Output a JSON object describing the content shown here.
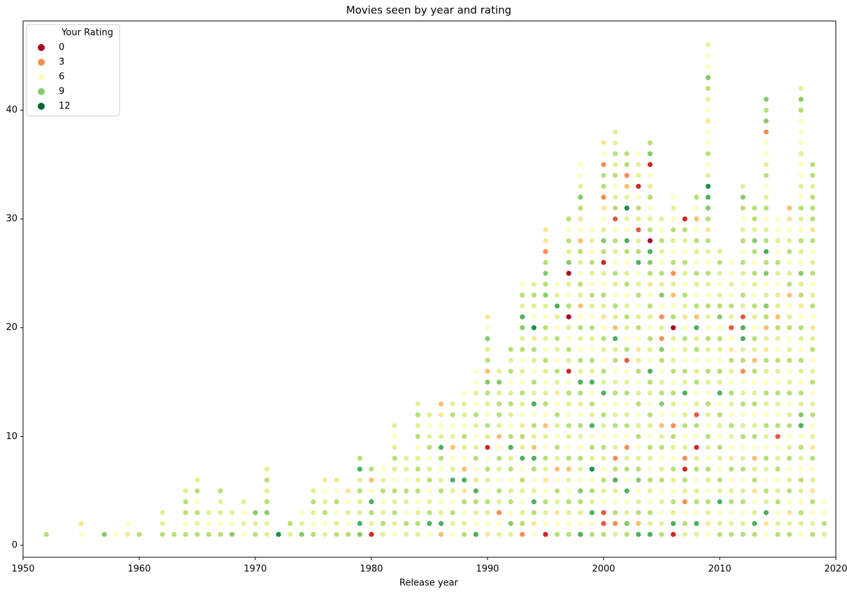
{
  "chart_data": {
    "type": "strip",
    "title": "Movies seen by year and rating",
    "xlabel": "Release year",
    "xlim": [
      1950,
      2020
    ],
    "xticks": [
      1950,
      1960,
      1970,
      1980,
      1990,
      2000,
      2010,
      2020
    ],
    "ylim": [
      -1.1,
      48.2
    ],
    "yticks": [
      0,
      10,
      20,
      30,
      40
    ],
    "grid": false,
    "clim": [
      0,
      12
    ],
    "colormap": [
      "#a50026",
      "#d73027",
      "#f46d43",
      "#fdae61",
      "#fee08b",
      "#ffffbf",
      "#d9ef8b",
      "#a6d96a",
      "#66bd63",
      "#1a9850",
      "#006837"
    ],
    "legend": {
      "title": "Your Rating",
      "values": [
        0,
        3,
        6,
        9,
        12
      ],
      "position": "upper left"
    },
    "x": [
      1952,
      1955,
      1957,
      1958,
      1959,
      1960,
      1962,
      1963,
      1964,
      1965,
      1966,
      1967,
      1968,
      1969,
      1970,
      1971,
      1972,
      1973,
      1974,
      1975,
      1976,
      1977,
      1978,
      1979,
      1980,
      1981,
      1982,
      1983,
      1984,
      1985,
      1986,
      1987,
      1988,
      1989,
      1990,
      1991,
      1992,
      1993,
      1994,
      1995,
      1996,
      1997,
      1998,
      1999,
      2000,
      2001,
      2002,
      2003,
      2004,
      2005,
      2006,
      2007,
      2008,
      2009,
      2010,
      2011,
      2012,
      2013,
      2014,
      2015,
      2016,
      2017,
      2018,
      2019
    ],
    "ratings": [
      [
        8
      ],
      [
        6,
        5
      ],
      [
        9
      ],
      [
        6
      ],
      [
        5,
        6
      ],
      [
        8
      ],
      [
        8,
        7,
        7
      ],
      [
        8
      ],
      [
        8,
        6,
        8,
        8,
        7
      ],
      [
        8,
        7,
        8,
        6,
        8,
        7
      ],
      [
        8,
        6,
        7
      ],
      [
        8,
        6,
        7,
        7,
        8
      ],
      [
        9,
        6,
        7
      ],
      [
        6,
        7,
        6,
        7
      ],
      [
        8,
        7,
        9
      ],
      [
        7,
        7,
        9,
        8,
        7,
        8,
        7
      ],
      [
        11
      ],
      [
        7,
        8
      ],
      [
        9,
        7,
        6
      ],
      [
        8,
        6,
        7,
        8,
        7
      ],
      [
        7,
        6,
        8,
        7,
        6,
        5
      ],
      [
        8,
        7,
        6,
        8,
        6,
        7
      ],
      [
        8,
        6,
        7,
        6,
        5
      ],
      [
        9,
        10,
        7,
        7,
        8,
        7,
        10,
        8
      ],
      [
        1,
        7,
        8,
        10,
        6,
        4,
        8
      ],
      [
        7,
        8,
        7,
        6,
        8,
        7,
        6
      ],
      [
        6,
        7,
        8,
        7,
        8,
        6,
        7,
        8,
        7,
        6,
        7
      ],
      [
        7,
        8,
        6,
        7,
        8,
        6,
        7,
        7
      ],
      [
        7,
        8,
        7,
        6,
        8,
        7,
        8,
        7,
        6,
        8,
        7,
        8,
        7
      ],
      [
        6,
        10,
        8,
        7,
        6,
        8,
        7,
        6,
        8,
        7,
        6,
        7
      ],
      [
        4,
        10,
        7,
        6,
        8,
        7,
        6,
        8,
        10,
        7,
        6,
        5,
        4
      ],
      [
        6,
        7,
        8,
        6,
        7,
        10,
        7,
        6,
        4,
        7,
        6,
        8,
        7
      ],
      [
        8,
        7,
        6,
        8,
        5,
        10,
        4,
        6,
        7,
        8,
        6,
        7,
        7,
        6
      ],
      [
        10,
        6,
        7,
        8,
        10,
        7,
        6,
        8,
        7,
        6,
        7,
        8,
        6,
        7,
        6,
        6
      ],
      [
        5,
        6,
        7,
        8,
        6,
        7,
        8,
        6,
        1,
        7,
        8,
        6,
        7,
        8,
        9,
        4,
        8,
        7,
        9,
        6,
        5
      ],
      [
        7,
        6,
        3,
        7,
        8,
        6,
        7,
        8,
        6,
        4,
        7,
        8,
        8,
        7,
        9,
        7
      ],
      [
        7,
        9,
        6,
        8,
        7,
        6,
        8,
        7,
        10,
        8,
        6,
        7,
        8,
        7,
        6,
        8,
        7,
        8
      ],
      [
        3,
        8,
        7,
        6,
        7,
        8,
        6,
        10,
        7,
        8,
        5,
        6,
        7,
        8,
        6,
        7,
        6,
        8,
        7,
        9,
        10,
        7,
        8,
        6
      ],
      [
        6,
        5,
        8,
        10,
        7,
        6,
        8,
        10,
        4,
        7,
        8,
        6,
        10,
        7,
        8,
        6,
        7,
        8,
        5,
        11,
        6,
        7,
        8,
        7
      ],
      [
        1,
        6,
        7,
        8,
        6,
        5,
        7,
        8,
        6,
        7,
        4,
        6,
        8,
        7,
        6,
        7,
        8,
        6,
        7,
        8,
        6,
        7,
        9,
        8,
        9,
        8,
        3,
        5,
        5
      ],
      [
        8,
        6,
        5,
        7,
        8,
        6,
        4,
        7,
        8,
        6,
        7,
        8,
        6,
        5,
        7,
        8,
        6,
        7,
        8,
        6,
        7,
        10,
        7,
        6
      ],
      [
        8,
        6,
        7,
        8,
        6,
        7,
        4,
        8,
        6,
        7,
        8,
        6,
        7,
        8,
        6,
        1,
        7,
        8,
        6,
        7,
        0,
        8,
        6,
        7,
        0,
        9,
        7,
        8,
        6,
        8
      ],
      [
        10,
        6,
        7,
        8,
        9,
        6,
        7,
        8,
        6,
        7,
        8,
        6,
        7,
        8,
        10,
        7,
        8,
        6,
        7,
        8,
        6,
        4,
        7,
        8,
        6,
        7,
        8,
        4,
        6,
        5,
        8,
        9,
        7,
        6,
        6
      ],
      [
        8,
        6,
        10,
        7,
        8,
        6,
        11,
        7,
        8,
        6,
        10,
        7,
        8,
        6,
        10,
        7,
        8,
        6,
        7,
        8,
        6,
        7,
        8,
        6,
        7,
        8,
        6,
        7,
        6
      ],
      [
        8,
        2,
        2,
        6,
        7,
        8,
        6,
        7,
        8,
        6,
        7,
        8,
        6,
        10,
        7,
        8,
        6,
        7,
        8,
        6,
        5,
        7,
        8,
        6,
        7,
        1,
        8,
        9,
        7,
        6,
        5,
        3,
        8,
        8,
        3,
        6,
        5
      ],
      [
        7,
        3,
        8,
        6,
        7,
        10,
        8,
        3,
        7,
        6,
        8,
        7,
        6,
        8,
        7,
        6,
        8,
        7,
        10,
        4,
        7,
        8,
        6,
        7,
        8,
        6,
        7,
        8,
        6,
        2,
        8,
        7,
        6,
        8,
        7,
        8,
        7,
        7
      ],
      [
        8,
        9,
        7,
        6,
        10,
        6,
        8,
        7,
        3,
        6,
        8,
        7,
        6,
        8,
        7,
        6,
        2,
        8,
        6,
        7,
        8,
        7,
        6,
        8,
        7,
        6,
        8,
        10,
        6,
        7,
        11,
        7,
        4,
        3,
        8,
        8
      ],
      [
        10,
        4,
        8,
        7,
        6,
        9,
        8,
        7,
        6,
        8,
        7,
        6,
        8,
        7,
        6,
        8,
        7,
        5,
        6,
        8,
        7,
        6,
        8,
        7,
        6,
        10,
        8,
        7,
        2,
        7,
        8,
        6,
        1,
        7,
        7,
        6
      ],
      [
        10,
        7,
        8,
        6,
        7,
        8,
        6,
        7,
        8,
        6,
        7,
        8,
        6,
        7,
        8,
        10,
        6,
        7,
        8,
        6,
        7,
        8,
        6,
        5,
        8,
        9,
        10,
        0,
        8,
        7,
        6,
        8,
        7,
        6,
        1,
        9,
        8
      ],
      [
        8,
        7,
        6,
        7,
        6,
        8,
        7,
        6,
        8,
        7,
        4,
        6,
        9,
        8,
        7,
        6,
        8,
        9,
        3,
        7,
        3,
        6,
        9,
        7,
        8,
        6,
        7,
        8,
        6,
        7
      ],
      [
        1,
        10,
        7,
        8,
        6,
        7,
        8,
        6,
        7,
        8,
        3,
        6,
        7,
        8,
        6,
        8,
        7,
        6,
        7,
        0,
        8,
        6,
        4,
        7,
        3,
        8,
        6,
        7,
        8,
        6,
        7,
        6
      ],
      [
        7,
        8,
        6,
        3,
        7,
        8,
        1,
        3,
        7,
        6,
        8,
        7,
        6,
        10,
        7,
        8,
        6,
        7,
        8,
        6,
        5,
        7,
        8,
        6,
        7,
        8,
        6,
        7,
        8,
        1
      ],
      [
        7,
        10,
        6,
        8,
        7,
        6,
        8,
        7,
        1,
        6,
        8,
        2,
        7,
        6,
        8,
        7,
        6,
        8,
        7,
        10,
        4,
        8,
        6,
        7,
        8,
        6,
        7,
        8,
        6,
        4,
        6,
        8
      ],
      [
        6,
        5,
        7,
        8,
        6,
        7,
        8,
        6,
        7,
        8,
        6,
        7,
        8,
        6,
        7,
        8,
        6,
        7,
        8,
        6,
        7,
        8,
        6,
        7,
        8,
        6,
        7,
        8,
        5,
        8,
        9,
        10,
        11,
        7,
        6,
        8,
        6,
        6,
        5,
        6,
        7,
        8,
        9,
        6,
        6,
        7
      ],
      [
        8,
        7,
        6,
        10,
        7,
        8,
        6,
        7,
        8,
        6,
        7,
        8,
        6,
        10,
        7,
        8,
        6,
        7,
        8,
        6,
        9,
        8,
        7,
        6,
        7,
        8,
        7
      ],
      [
        8,
        7,
        6,
        8,
        7,
        6,
        8,
        5,
        6,
        7,
        8,
        6,
        7,
        8,
        6,
        7,
        8,
        5,
        6,
        2,
        7,
        8,
        6,
        7,
        6,
        6
      ],
      [
        8,
        7,
        6,
        8,
        7,
        6,
        8,
        7,
        6,
        8,
        7,
        6,
        8,
        7,
        6,
        3,
        8,
        7,
        10,
        10,
        2,
        7,
        8,
        6,
        7,
        8,
        6,
        8,
        7,
        6,
        8,
        9,
        7
      ],
      [
        8,
        10,
        7,
        6,
        5,
        8,
        7,
        4,
        6,
        8,
        7,
        6,
        8,
        7,
        6,
        8,
        4,
        7,
        8,
        6,
        7,
        8,
        6,
        7,
        8,
        6,
        8,
        9,
        7,
        8,
        8
      ],
      [
        6,
        5,
        10,
        7,
        8,
        6,
        7,
        8,
        6,
        7,
        8,
        6,
        7,
        8,
        6,
        7,
        8,
        5,
        7,
        4,
        8,
        9,
        7,
        6,
        9,
        8,
        10,
        8,
        7,
        6,
        8,
        7,
        6,
        8,
        7,
        6,
        6,
        3,
        9,
        8,
        9
      ],
      [
        8,
        7,
        6,
        8,
        7,
        6,
        8,
        7,
        6,
        2,
        8,
        6,
        7,
        8,
        6,
        7,
        8,
        6,
        7,
        8,
        4,
        7,
        5,
        6,
        7,
        8,
        6,
        7,
        6,
        6
      ],
      [
        8,
        7,
        5,
        6,
        8,
        7,
        6,
        8,
        7,
        6,
        8,
        7,
        6,
        8,
        7,
        6,
        8,
        7,
        6,
        8,
        7,
        6,
        4,
        8,
        7,
        6,
        8,
        7,
        6,
        5,
        4
      ],
      [
        6,
        7,
        8,
        6,
        7,
        8,
        6,
        7,
        8,
        6,
        10,
        9,
        7,
        8,
        6,
        7,
        8,
        6,
        7,
        8,
        6,
        5,
        8,
        7,
        9,
        6,
        7,
        8,
        6,
        7,
        8,
        6,
        7,
        6,
        6,
        7,
        6,
        6,
        6,
        8,
        9,
        7
      ],
      [
        8,
        7,
        6,
        8,
        5,
        7,
        6,
        8,
        5,
        7,
        6,
        8,
        7,
        6,
        8,
        7,
        6,
        8,
        7,
        5,
        6,
        8,
        7,
        6,
        8,
        7,
        6,
        8,
        5,
        8,
        8,
        8,
        7,
        8,
        8
      ],
      [
        7,
        8,
        6,
        6
      ]
    ]
  }
}
